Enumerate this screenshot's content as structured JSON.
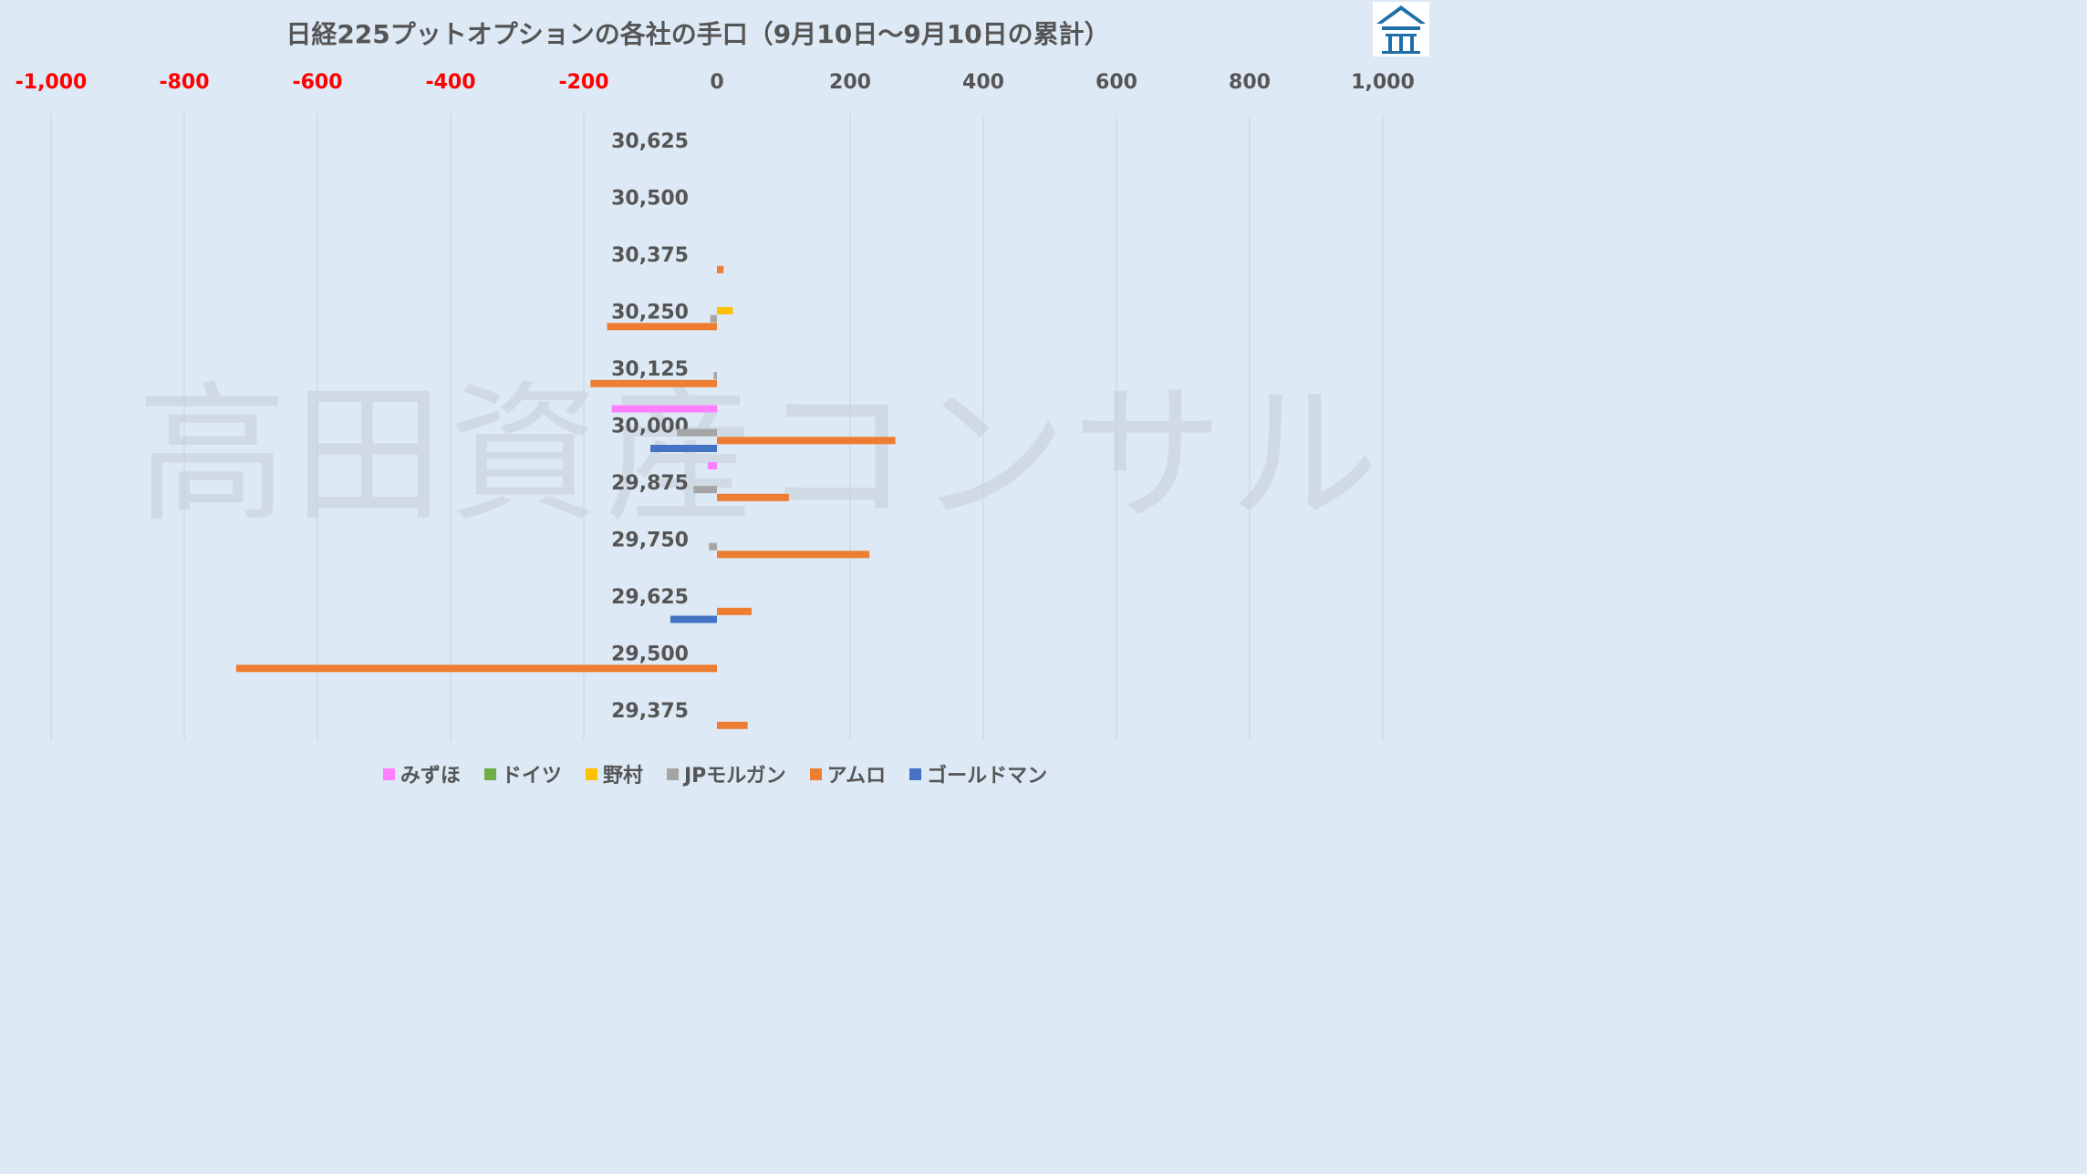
{
  "colors": {
    "background": "#dde9f5",
    "negative_tick": "#ff0000",
    "positive_tick": "#555555",
    "gridline": "#c8d2dc"
  },
  "watermark": "高田資産コンサル",
  "logo": {
    "icon": "house-logo-icon"
  },
  "chart_data": {
    "type": "bar",
    "orientation": "horizontal",
    "title": "日経225プットオプションの各社の手口（9月10日～9月10日の累計）",
    "xlim": [
      -1000,
      1000
    ],
    "x_ticks": [
      -1000,
      -800,
      -600,
      -400,
      -200,
      0,
      200,
      400,
      600,
      800,
      1000
    ],
    "x_tick_labels": [
      "-1,000",
      "-800",
      "-600",
      "-400",
      "-200",
      "0",
      "200",
      "400",
      "600",
      "800",
      "1,000"
    ],
    "grid": true,
    "legend_position": "bottom",
    "categories": [
      "30,625",
      "30,500",
      "30,375",
      "30,250",
      "30,125",
      "30,000",
      "29,875",
      "29,750",
      "29,625",
      "29,500",
      "29,375"
    ],
    "series": [
      {
        "name": "みずほ",
        "color": "#ff80ff",
        "values": [
          0,
          0,
          0,
          0,
          0,
          -158,
          -14,
          0,
          0,
          0,
          0
        ]
      },
      {
        "name": "ドイツ",
        "color": "#70ad47",
        "values": [
          0,
          0,
          0,
          0,
          0,
          0,
          0,
          0,
          0,
          0,
          0
        ]
      },
      {
        "name": "野村",
        "color": "#ffc000",
        "values": [
          0,
          0,
          0,
          24,
          0,
          0,
          0,
          0,
          0,
          0,
          0
        ]
      },
      {
        "name": "JPモルガン",
        "color": "#a5a5a5",
        "values": [
          0,
          0,
          0,
          -10,
          -5,
          -60,
          -35,
          -12,
          0,
          0,
          0
        ]
      },
      {
        "name": "アムロ",
        "color": "#ed7d31",
        "values": [
          0,
          0,
          10,
          -165,
          -190,
          268,
          108,
          229,
          52,
          -722,
          46
        ]
      },
      {
        "name": "ゴールドマン",
        "color": "#4472c4",
        "values": [
          0,
          0,
          0,
          0,
          0,
          -100,
          0,
          0,
          -70,
          0,
          0
        ]
      }
    ]
  }
}
